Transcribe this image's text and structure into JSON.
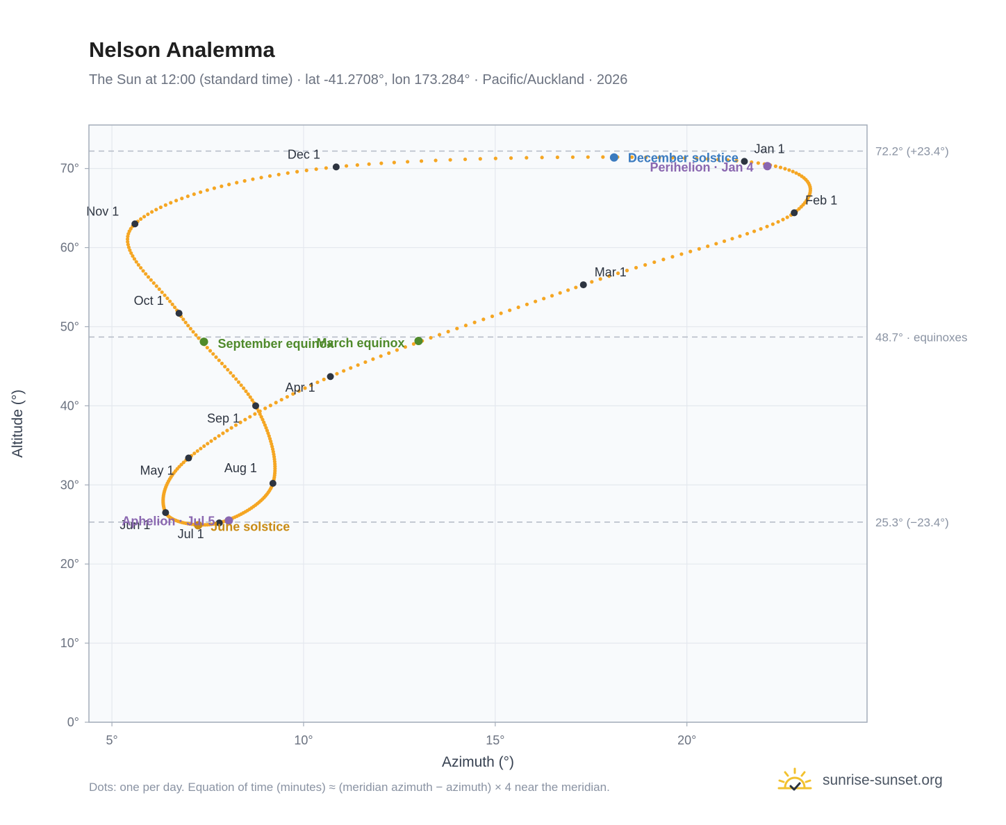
{
  "header": {
    "title": "Nelson Analemma",
    "subtitle": "The Sun at 12:00 (standard time) · lat -41.2708°, lon 173.284° · Pacific/Auckland · 2026"
  },
  "footer": {
    "note": "Dots: one per day. Equation of time (minutes) ≈ (meridian azimuth − azimuth) × 4 near the meridian.",
    "brand": "sunrise-sunset.org"
  },
  "colors": {
    "path": "#F5A623",
    "month_dot": "#2d3440",
    "december_solstice": "#3b7bbf",
    "june_solstice": "#c98b14",
    "equinox": "#4f8a2b",
    "apsis": "#8a67b0",
    "reference_line": "#b7bec9",
    "plot_bg": "#f8fafc",
    "frame": "#a3acb9"
  },
  "chart_data": {
    "type": "scatter",
    "title": "Nelson Analemma",
    "xlabel": "Azimuth (°)",
    "ylabel": "Altitude (°)",
    "xlim": [
      4.4,
      24.7
    ],
    "ylim": [
      0,
      75.5
    ],
    "x_ticks": [
      5,
      10,
      15,
      20
    ],
    "x_tick_labels": [
      "5°",
      "10°",
      "15°",
      "20°"
    ],
    "y_ticks": [
      0,
      10,
      20,
      30,
      40,
      50,
      60,
      70
    ],
    "y_tick_labels": [
      "0°",
      "10°",
      "20°",
      "30°",
      "40°",
      "50°",
      "60°",
      "70°"
    ],
    "grid": true,
    "reference_lines": [
      {
        "y": 72.2,
        "label": "72.2° (+23.4°)"
      },
      {
        "y": 48.7,
        "label": "48.7° · equinoxes"
      },
      {
        "y": 25.3,
        "label": "25.3° (−23.4°)"
      }
    ],
    "daily_path": {
      "name": "",
      "points_per_day": 1,
      "anchors": [
        {
          "month": "Jan 1",
          "x": 21.5,
          "y": 70.9
        },
        {
          "month": "Feb 1",
          "x": 22.8,
          "y": 64.4
        },
        {
          "month": "Mar 1",
          "x": 17.3,
          "y": 55.3
        },
        {
          "month": "Apr 1",
          "x": 10.7,
          "y": 43.7
        },
        {
          "month": "May 1",
          "x": 7.0,
          "y": 33.4
        },
        {
          "month": "Jun 1",
          "x": 6.4,
          "y": 26.5
        },
        {
          "month": "Jul 1",
          "x": 7.8,
          "y": 25.2
        },
        {
          "month": "Aug 1",
          "x": 9.2,
          "y": 30.2
        },
        {
          "month": "Sep 1",
          "x": 8.75,
          "y": 40.0
        },
        {
          "month": "Oct 1",
          "x": 6.75,
          "y": 51.7
        },
        {
          "month": "Nov 1",
          "x": 5.6,
          "y": 63.0
        },
        {
          "month": "Dec 1",
          "x": 10.85,
          "y": 70.2
        },
        {
          "month": "Jan 1",
          "x": 21.5,
          "y": 70.9
        }
      ]
    },
    "month_markers": [
      {
        "label": "Jan 1",
        "x": 21.5,
        "y": 70.9
      },
      {
        "label": "Feb 1",
        "x": 22.8,
        "y": 64.4
      },
      {
        "label": "Mar 1",
        "x": 17.3,
        "y": 55.3
      },
      {
        "label": "Apr 1",
        "x": 10.7,
        "y": 43.7
      },
      {
        "label": "May 1",
        "x": 7.0,
        "y": 33.4
      },
      {
        "label": "Jun 1",
        "x": 6.4,
        "y": 26.5
      },
      {
        "label": "Jul 1",
        "x": 7.8,
        "y": 25.2
      },
      {
        "label": "Aug 1",
        "x": 9.2,
        "y": 30.2
      },
      {
        "label": "Sep 1",
        "x": 8.75,
        "y": 40.0
      },
      {
        "label": "Oct 1",
        "x": 6.75,
        "y": 51.7
      },
      {
        "label": "Nov 1",
        "x": 5.6,
        "y": 63.0
      },
      {
        "label": "Dec 1",
        "x": 10.85,
        "y": 70.2
      }
    ],
    "events": [
      {
        "label": "December solstice",
        "x": 18.1,
        "y": 71.4,
        "color_key": "december_solstice"
      },
      {
        "label": "Perihelion · Jan 4",
        "x": 22.1,
        "y": 70.3,
        "color_key": "apsis"
      },
      {
        "label": "March equinox",
        "x": 13.0,
        "y": 48.2,
        "color_key": "equinox"
      },
      {
        "label": "September equinox",
        "x": 7.4,
        "y": 48.1,
        "color_key": "equinox"
      },
      {
        "label": "June solstice",
        "x": 7.25,
        "y": 24.9,
        "color_key": "june_solstice"
      },
      {
        "label": "Aphelion · Jul 5",
        "x": 8.05,
        "y": 25.5,
        "color_key": "apsis"
      }
    ]
  }
}
